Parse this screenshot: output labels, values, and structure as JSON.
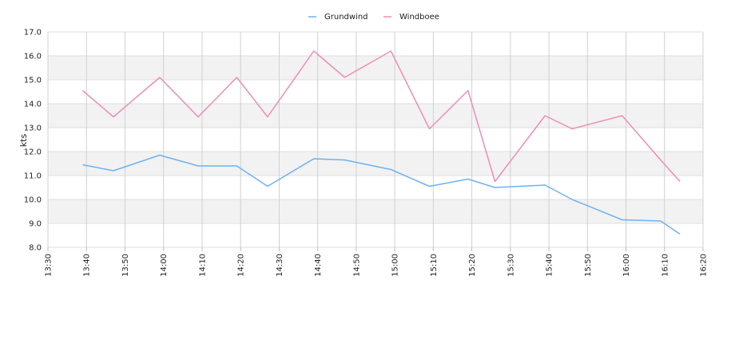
{
  "chart_data": {
    "type": "line",
    "title": "",
    "xlabel": "",
    "ylabel": "kts",
    "ylim": [
      8.0,
      17.0
    ],
    "y_ticks": [
      "8.0",
      "9.0",
      "10.0",
      "11.0",
      "12.0",
      "13.0",
      "14.0",
      "15.0",
      "16.0",
      "17.0"
    ],
    "x_ticks": [
      "13:30",
      "13:40",
      "13:50",
      "14:00",
      "14:10",
      "14:20",
      "14:30",
      "14:40",
      "14:50",
      "15:00",
      "15:10",
      "15:20",
      "15:30",
      "15:40",
      "15:50",
      "16:00",
      "16:10",
      "16:20"
    ],
    "xlim": [
      "13:30",
      "16:20"
    ],
    "grid": true,
    "banded_background": true,
    "legend_position": "top-center",
    "series": [
      {
        "name": "Grundwind",
        "color": "#6fb1f0",
        "x": [
          "13:39",
          "13:47",
          "13:59",
          "14:09",
          "14:19",
          "14:27",
          "14:39",
          "14:47",
          "14:59",
          "15:09",
          "15:19",
          "15:26",
          "15:39",
          "15:46",
          "15:59",
          "16:09",
          "16:14"
        ],
        "values": [
          11.45,
          11.2,
          11.85,
          11.4,
          11.4,
          10.55,
          11.7,
          11.65,
          11.25,
          10.55,
          10.85,
          10.5,
          10.6,
          10.0,
          9.15,
          9.1,
          8.55
        ]
      },
      {
        "name": "Windboee",
        "color": "#f08cb8",
        "x": [
          "13:39",
          "13:47",
          "13:59",
          "14:09",
          "14:19",
          "14:27",
          "14:39",
          "14:47",
          "14:59",
          "15:09",
          "15:19",
          "15:26",
          "15:39",
          "15:46",
          "15:59",
          "16:09",
          "16:14"
        ],
        "values": [
          14.55,
          13.45,
          15.1,
          13.45,
          15.1,
          13.45,
          16.2,
          15.1,
          16.2,
          12.95,
          14.55,
          10.75,
          13.5,
          12.95,
          13.5,
          11.65,
          10.75
        ]
      }
    ]
  }
}
